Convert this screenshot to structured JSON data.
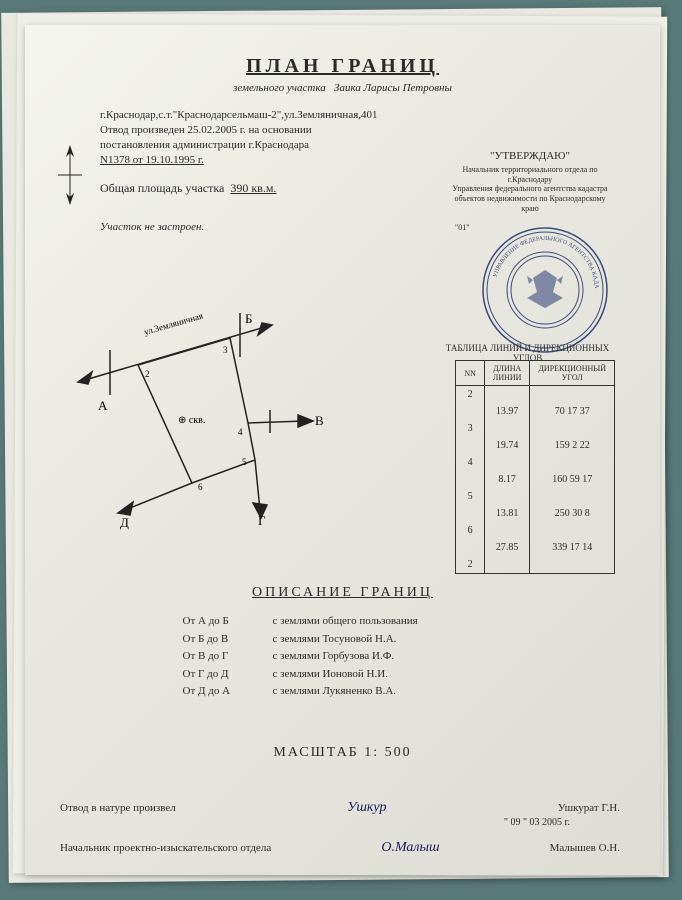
{
  "title": "ПЛАН  ГРАНИЦ",
  "subtitle_prefix": "земельного участка",
  "owner": "Заика Ларисы Петровны",
  "address": "г.Краснодар,с.т.\"Краснодарсельмаш-2\",ул.Земляничная,401",
  "allotment_line": "Отвод произведен 25.02.2005 г. на основании",
  "resolution_line": "постановления администрации г.Краснодара",
  "resolution_num": "N1378 от 19.10.1995 г.",
  "area_label": "Общая площадь участка",
  "area_value": "390 кв.м.",
  "unbuilt": "Участок не застроен.",
  "approve": {
    "title": "\"УТВЕРЖДАЮ\"",
    "line1": "Начальник территориального отдела по г.Краснодару",
    "line2": "Управления федерального агентства кадастра",
    "line3": "объектов недвижимости по Краснодарскому краю",
    "date_frag": "\"01\""
  },
  "plot": {
    "street_label": "ул.Земляничная",
    "labels": [
      "А",
      "Б",
      "В",
      "Г",
      "Д"
    ],
    "numbers": [
      "2",
      "3",
      "4",
      "5",
      "6"
    ],
    "well": "⊕ скв."
  },
  "coord_table": {
    "title": "ТАБЛИЦА ЛИНИЙ И ДИРЕКЦИОННЫХ УГЛОВ",
    "headers": [
      "NN",
      "ДЛИНА\nЛИНИИ",
      "ДИРЕКЦИОННЫЙ\nУГОЛ"
    ],
    "points": [
      "2",
      "3",
      "4",
      "5",
      "6",
      "2"
    ],
    "rows": [
      {
        "len": "13.97",
        "ang": "70 17 37"
      },
      {
        "len": "19.74",
        "ang": "159 2 22"
      },
      {
        "len": "8.17",
        "ang": "160 59 17"
      },
      {
        "len": "13.81",
        "ang": "250 30 8"
      },
      {
        "len": "27.85",
        "ang": "339 17 14"
      }
    ]
  },
  "boundaries": {
    "title": "ОПИСАНИЕ ГРАНИЦ",
    "rows": [
      {
        "from": "От А до Б",
        "desc": "с землями общего пользования"
      },
      {
        "from": "От Б до В",
        "desc": "с землями Тосуновой Н.А."
      },
      {
        "from": "От В до Г",
        "desc": "с землями Горбузова И.Ф."
      },
      {
        "from": "От Г до Д",
        "desc": "с землями Ионовой Н.И."
      },
      {
        "from": "От Д до А",
        "desc": "с землями Лукяненко В.А."
      }
    ]
  },
  "scale": "МАСШТАБ  1: 500",
  "sig1_label": "Отвод в натуре произвел",
  "sig1_sign": "Ушкур",
  "sig1_name": "Ушкурат Г.Н.",
  "sig_date": "\" 09 \"   03            2005 г.",
  "sig2_label": "Начальник проектно-изыскательского отдела",
  "sig2_sign": "О.Малыш",
  "sig2_name": "Малышев О.Н."
}
